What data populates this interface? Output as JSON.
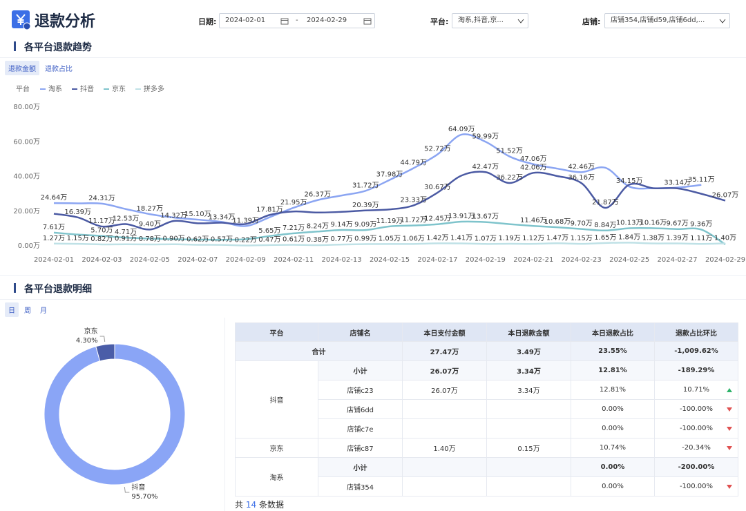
{
  "header": {
    "title": "退款分析"
  },
  "filters": {
    "date_label": "日期:",
    "start": "2024-02-01",
    "sep": "-",
    "end": "2024-02-29",
    "platform_label": "平台:",
    "platform": "淘系,抖音,京...",
    "shop_label": "店铺:",
    "shop": "店铺354,店铺d59,店铺6dd,..."
  },
  "trend": {
    "title": "各平台退款趋势",
    "tabs": [
      "退款金额",
      "退款占比"
    ],
    "active_tab": 0
  },
  "detail": {
    "title": "各平台退款明细",
    "tabs": [
      "日",
      "周",
      "月"
    ],
    "active_tab": 0,
    "table": {
      "columns": [
        "平台",
        "店铺名",
        "本日支付金额",
        "本日退款金额",
        "本日退款占比",
        "退款占比环比"
      ],
      "total": {
        "label": "合计",
        "values": [
          "27.47万",
          "3.49万",
          "23.55%",
          "-1,009.62%"
        ]
      },
      "groups": [
        {
          "platform": "抖音",
          "subtotal": {
            "label": "小计",
            "values": [
              "26.07万",
              "3.34万",
              "12.81%",
              "-189.29%"
            ]
          },
          "rows": [
            {
              "shop": "店铺c23",
              "values": [
                "26.07万",
                "3.34万",
                "12.81%",
                "10.71%"
              ],
              "trend": "up"
            },
            {
              "shop": "店铺6dd",
              "values": [
                null,
                null,
                "0.00%",
                "-100.00%"
              ],
              "trend": "down"
            },
            {
              "shop": "店铺c7e",
              "values": [
                null,
                null,
                "0.00%",
                "-100.00%"
              ],
              "trend": "down"
            }
          ]
        },
        {
          "platform": "京东",
          "subtotal": null,
          "rows": [
            {
              "shop": "店铺c87",
              "values": [
                "1.40万",
                "0.15万",
                "10.74%",
                "-20.34%"
              ],
              "trend": "down"
            }
          ]
        },
        {
          "platform": "淘系",
          "subtotal": {
            "label": "小计",
            "values": [
              null,
              null,
              "0.00%",
              "-200.00%"
            ]
          },
          "rows": [
            {
              "shop": "店铺354",
              "values": [
                null,
                null,
                "0.00%",
                "-100.00%"
              ],
              "trend": "down"
            }
          ]
        }
      ]
    },
    "footer": {
      "prefix": "共",
      "count": 14,
      "suffix": "条数据"
    }
  },
  "chart_data": [
    {
      "type": "line",
      "legend_title": "平台",
      "categories": [
        "2024-02-01",
        null,
        "2024-02-03",
        null,
        "2024-02-05",
        null,
        "2024-02-07",
        null,
        "2024-02-09",
        null,
        "2024-02-11",
        null,
        "2024-02-13",
        null,
        "2024-02-15",
        null,
        "2024-02-17",
        null,
        "2024-02-19",
        null,
        "2024-02-21",
        null,
        "2024-02-23",
        null,
        "2024-02-25",
        null,
        "2024-02-27",
        null,
        "2024-02-29"
      ],
      "ylim": [
        0,
        80
      ],
      "yticks": [
        {
          "value": 0,
          "label": "0.00万"
        },
        {
          "value": 20,
          "label": "20.00万"
        },
        {
          "value": 40,
          "label": "40.00万"
        },
        {
          "value": 60,
          "label": "60.00万"
        },
        {
          "value": 80,
          "label": "80.00万"
        }
      ],
      "grid": false,
      "series": [
        {
          "name": "淘系",
          "color": "#8ba5f2",
          "values": [
            24.64,
            24.5,
            24.31,
            21.2,
            18.27,
            16.3,
            15.1,
            13.8,
            11.39,
            16.5,
            21.95,
            26.37,
            29.0,
            31.72,
            37.98,
            44.79,
            52.72,
            64.09,
            59.99,
            51.52,
            47.06,
            44.5,
            42.46,
            45.0,
            34.15,
            33.2,
            33.6,
            35.11,
            null
          ],
          "value_labels": [
            "24.64万",
            null,
            "24.31万",
            null,
            "18.27万",
            null,
            "15.10万",
            null,
            "11.39万",
            null,
            "21.95万",
            "26.37万",
            null,
            "31.72万",
            "37.98万",
            "44.79万",
            "52.72万",
            "64.09万",
            "59.99万",
            "51.52万",
            "47.06万",
            null,
            "42.46万",
            null,
            "34.15万",
            null,
            null,
            "35.11万",
            null
          ]
        },
        {
          "name": "抖音",
          "color": "#4b5aa3",
          "values": [
            18.5,
            16.39,
            11.17,
            12.53,
            9.4,
            14.32,
            13.0,
            13.34,
            12.6,
            17.81,
            19.8,
            19.2,
            19.6,
            20.39,
            21.0,
            23.33,
            30.67,
            40.5,
            42.47,
            36.22,
            42.06,
            40.2,
            36.16,
            21.87,
            35.3,
            33.2,
            33.14,
            30.0,
            26.07
          ],
          "value_labels": [
            null,
            "16.39万",
            "11.17万",
            "12.53万",
            "9.40万",
            "14.32万",
            null,
            "13.34万",
            null,
            "17.81万",
            null,
            null,
            null,
            "20.39万",
            null,
            "23.33万",
            "30.67万",
            null,
            "42.47万",
            "36.22万",
            "42.06万",
            null,
            "36.16万",
            "21.87万",
            null,
            null,
            "33.14万",
            null,
            "26.07万"
          ]
        },
        {
          "name": "京东",
          "color": "#7fc4cc",
          "values": [
            7.61,
            6.5,
            5.7,
            4.71,
            4.2,
            3.8,
            3.6,
            3.5,
            3.8,
            5.65,
            7.21,
            8.24,
            9.14,
            9.09,
            11.19,
            11.72,
            12.45,
            13.91,
            13.67,
            12.5,
            11.46,
            10.68,
            9.7,
            8.84,
            10.13,
            10.16,
            9.67,
            9.36,
            0.8
          ],
          "value_labels": [
            "7.61万",
            null,
            "5.70万",
            "4.71万",
            null,
            null,
            null,
            null,
            null,
            "5.65万",
            "7.21万",
            "8.24万",
            "9.14万",
            "9.09万",
            "11.19万",
            "11.72万",
            "12.45万",
            "13.91万",
            "13.67万",
            null,
            "11.46万",
            "10.68万",
            "9.70万",
            "8.84万",
            "10.13万",
            "10.16万",
            "9.67万",
            "9.36万",
            null
          ]
        },
        {
          "name": "拼多多",
          "color": "#bfe1e6",
          "values": [
            1.27,
            1.15,
            0.82,
            0.91,
            0.78,
            0.9,
            0.62,
            0.57,
            0.22,
            0.47,
            0.61,
            0.38,
            0.77,
            0.99,
            1.05,
            1.06,
            1.42,
            1.41,
            1.07,
            1.19,
            1.12,
            1.47,
            1.15,
            1.65,
            1.84,
            1.38,
            1.39,
            1.11,
            1.4
          ],
          "value_labels": [
            "1.27万",
            "1.15万",
            "0.82万",
            "0.91万",
            "0.78万",
            "0.90万",
            "0.62万",
            "0.57万",
            "0.22万",
            "0.47万",
            "0.61万",
            "0.38万",
            "0.77万",
            "0.99万",
            "1.05万",
            "1.06万",
            "1.42万",
            "1.41万",
            "1.07万",
            "1.19万",
            "1.12万",
            "1.47万",
            "1.15万",
            "1.65万",
            "1.84万",
            "1.38万",
            "1.39万",
            "1.11万",
            "1.40万"
          ]
        }
      ]
    },
    {
      "type": "pie",
      "categories": [
        "抖音",
        "京东"
      ],
      "values": [
        95.7,
        4.3
      ],
      "value_labels": [
        "95.70%",
        "4.30%"
      ],
      "colors": [
        "#8aa5f6",
        "#4a5da8"
      ],
      "hole": true
    }
  ]
}
